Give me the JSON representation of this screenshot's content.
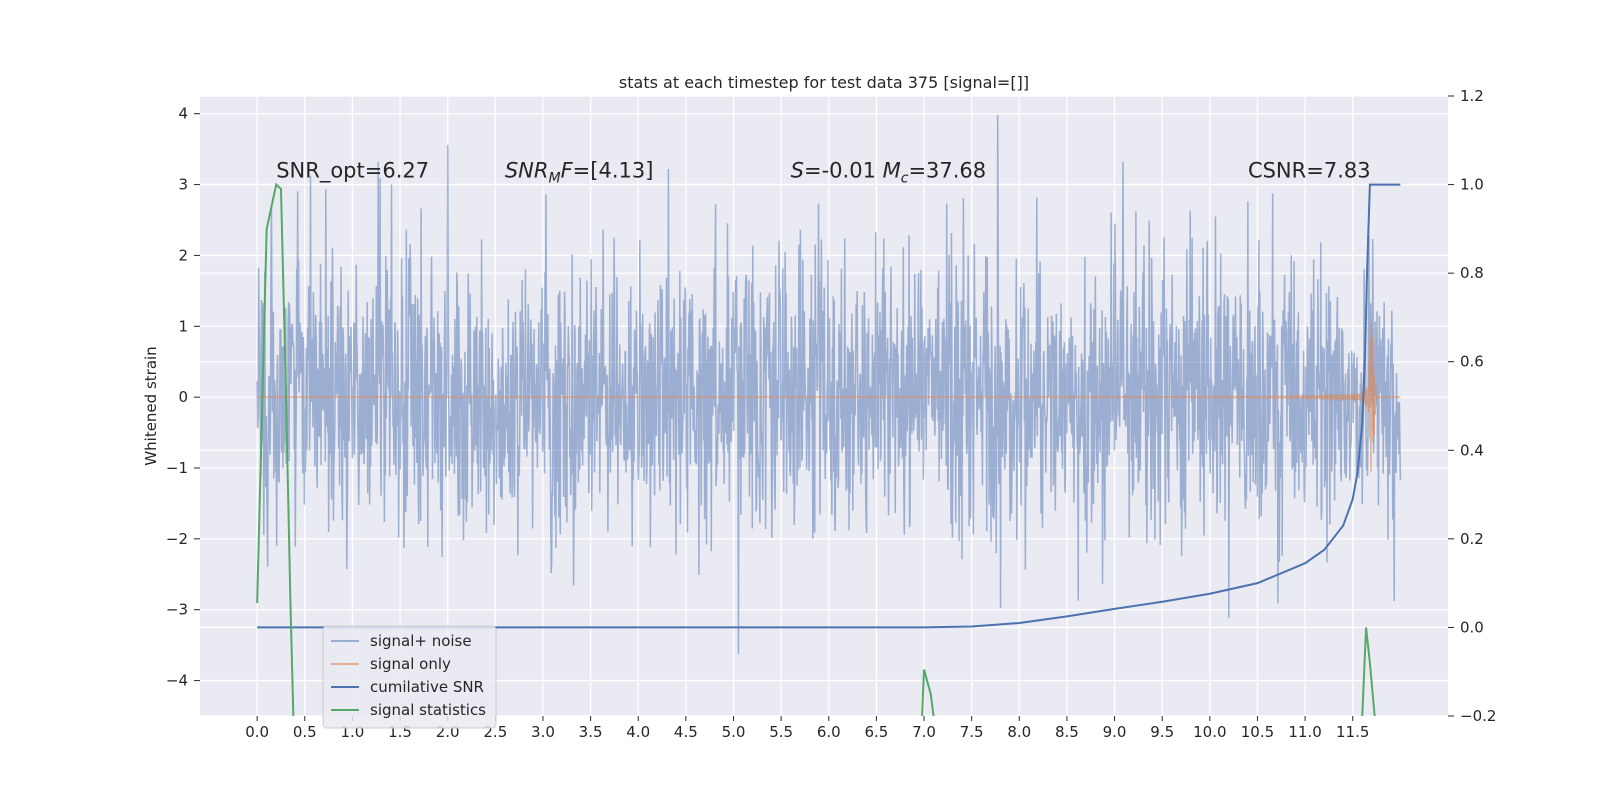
{
  "chart_data": {
    "type": "line",
    "title": "stats at each timestep for test data 375 [signal=[]]",
    "ylabel": "Whitened strain",
    "xlabel": "",
    "xlim": [
      -0.6,
      12.5
    ],
    "ylim": [
      -4.5,
      4.25
    ],
    "y2lim": [
      -0.2,
      1.2
    ],
    "x_ticks": [
      0.0,
      0.5,
      1.0,
      1.5,
      2.0,
      2.5,
      3.0,
      3.5,
      4.0,
      4.5,
      5.0,
      5.5,
      6.0,
      6.5,
      7.0,
      7.5,
      8.0,
      8.5,
      9.0,
      9.5,
      10.0,
      10.5,
      11.0,
      11.5
    ],
    "x_tick_labels": [
      "0.0",
      "0.5",
      "1.0",
      "1.5",
      "2.0",
      "2.5",
      "3.0",
      "3.5",
      "4.0",
      "4.5",
      "5.0",
      "5.5",
      "6.0",
      "6.5",
      "7.0",
      "7.5",
      "8.0",
      "8.5",
      "9.0",
      "9.5",
      "10.0",
      "10.5",
      "11.0",
      "11.5"
    ],
    "y_ticks": [
      -4,
      -3,
      -2,
      -1,
      0,
      1,
      2,
      3,
      4
    ],
    "y_tick_labels": [
      "−4",
      "−3",
      "−2",
      "−1",
      "0",
      "1",
      "2",
      "3",
      "4"
    ],
    "y2_ticks": [
      -0.2,
      0.0,
      0.2,
      0.4,
      0.6,
      0.8,
      1.0,
      1.2
    ],
    "y2_tick_labels": [
      "−0.2",
      "0.0",
      "0.2",
      "0.4",
      "0.6",
      "0.8",
      "1.0",
      "1.2"
    ],
    "grid": true,
    "legend_position": "bottom-left",
    "annotations": [
      {
        "key": "snr_opt",
        "parts": [
          {
            "text": "SNR_opt=6.27"
          }
        ],
        "x": 0.2,
        "y": 3.1
      },
      {
        "key": "snr_mf",
        "parts": [
          {
            "text": "SNR",
            "italic": true
          },
          {
            "text": "M",
            "italic": true,
            "sub": true
          },
          {
            "text": "F",
            "italic": true
          },
          {
            "text": "=[4.13]"
          }
        ],
        "x": 2.6,
        "y": 3.1
      },
      {
        "key": "spin",
        "parts": [
          {
            "text": "S",
            "italic": true
          },
          {
            "text": "=-0.01  "
          },
          {
            "text": "M",
            "italic": true
          },
          {
            "text": "c",
            "italic": true,
            "sub": true
          },
          {
            "text": "=37.68"
          }
        ],
        "x": 5.6,
        "y": 3.1
      },
      {
        "key": "csnr",
        "parts": [
          {
            "text": "CSNR=7.83"
          }
        ],
        "x": 10.4,
        "y": 3.1
      }
    ],
    "series": [
      {
        "name": "signal+ noise",
        "axis": "left",
        "color": "#4c72b0",
        "opacity": 0.5,
        "kind": "noise",
        "x_range": [
          0.0,
          12.0
        ],
        "samples": 2400,
        "std": 1.0,
        "seed": 375
      },
      {
        "name": "signal only",
        "axis": "left",
        "color": "#dd8452",
        "opacity": 0.6,
        "kind": "chirp",
        "x_range": [
          0.0,
          12.0
        ],
        "merger_time": 11.68,
        "end_time": 11.75,
        "peak_amplitude": 1.45
      },
      {
        "name": "cumilative SNR",
        "axis": "right",
        "color": "#4c72b0",
        "opacity": 1.0,
        "x": [
          0.0,
          6.0,
          7.0,
          7.5,
          8.0,
          8.5,
          9.0,
          9.5,
          10.0,
          10.5,
          11.0,
          11.2,
          11.4,
          11.5,
          11.55,
          11.6,
          11.63,
          11.65,
          11.68,
          11.7,
          12.0
        ],
        "y": [
          0.0,
          0.0,
          0.0,
          0.002,
          0.01,
          0.025,
          0.042,
          0.058,
          0.076,
          0.1,
          0.145,
          0.175,
          0.23,
          0.29,
          0.35,
          0.46,
          0.62,
          0.8,
          1.0,
          1.0,
          1.0
        ]
      },
      {
        "name": "signal statistics",
        "axis": "right",
        "color": "#55a868",
        "opacity": 1.0,
        "segments": [
          {
            "x": [
              0.0,
              0.1,
              0.2,
              0.25,
              0.3,
              0.35,
              0.38
            ],
            "y": [
              0.055,
              0.9,
              1.0,
              0.99,
              0.55,
              0.05,
              -0.2
            ]
          },
          {
            "x": [
              6.98,
              7.0,
              7.07,
              7.1
            ],
            "y": [
              -0.2,
              -0.095,
              -0.15,
              -0.2
            ]
          },
          {
            "x": [
              11.6,
              11.64,
              11.68,
              11.73
            ],
            "y": [
              -0.2,
              0.0,
              -0.08,
              -0.2
            ]
          }
        ]
      }
    ]
  }
}
